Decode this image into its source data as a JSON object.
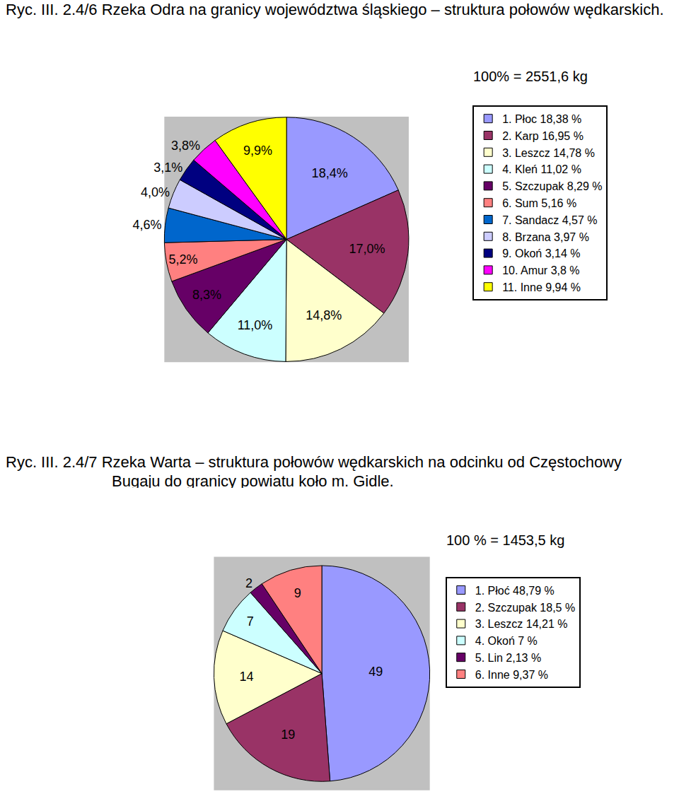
{
  "chart_data": [
    {
      "type": "pie",
      "title": "Ryc. III. 2.4/6  Rzeka Odra na granicy województwa śląskiego – struktura połowów wędkarskich.",
      "annotations": [
        "100% = 2551,6 kg"
      ],
      "categories": [
        "1. Płoc 18,38 %",
        "2. Karp 16,95 %",
        "3. Leszcz 14,78 %",
        "4. Kleń 11,02 %",
        "5. Szczupak 8,29 %",
        "6. Sum 5,16 %",
        "7. Sandacz 4,57 %",
        "8. Brzana 3,97 %",
        "9. Okoń 3,14 %",
        "10. Amur 3,8 %",
        "11. Inne 9,94 %"
      ],
      "values": [
        18.38,
        16.95,
        14.78,
        11.02,
        8.29,
        5.16,
        4.57,
        3.97,
        3.14,
        3.8,
        9.94
      ],
      "value_labels": [
        "18,4%",
        "17,0%",
        "14,8%",
        "11,0%",
        "8,3%",
        "5,2%",
        "4,6%",
        "4,0%",
        "3,1%",
        "3,8%",
        "9,9%"
      ],
      "colors": [
        "#9999ff",
        "#993366",
        "#ffffcc",
        "#ccffff",
        "#660066",
        "#ff8080",
        "#0066cc",
        "#ccccff",
        "#000080",
        "#ff00ff",
        "#ffff00"
      ],
      "data_labels": true,
      "legend": "right"
    },
    {
      "type": "pie",
      "title": "Ryc. III. 2.4/7  Rzeka Warta – struktura połowów wędkarskich na odcinku od Częstochowy Bugaju do granicy powiatu koło m. Gidle.",
      "annotations": [
        "100 % = 1453,5 kg"
      ],
      "categories": [
        "1. Płoć 48,79 %",
        "2. Szczupak 18,5 %",
        "3. Leszcz 14,21 %",
        "4. Okoń 7 %",
        "5. Lin 2,13 %",
        "6. Inne 9,37 %"
      ],
      "values": [
        48.79,
        18.5,
        14.21,
        7,
        2.13,
        9.37
      ],
      "value_labels": [
        "49",
        "19",
        "14",
        "7",
        "2",
        "9"
      ],
      "colors": [
        "#9999ff",
        "#993366",
        "#ffffcc",
        "#ccffff",
        "#660066",
        "#ff8080"
      ],
      "data_labels": true,
      "legend": "right"
    }
  ]
}
